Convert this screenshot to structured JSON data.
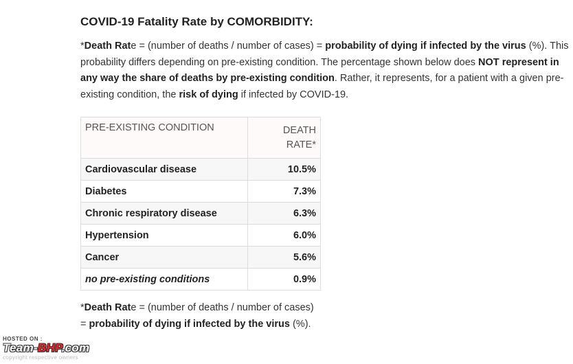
{
  "title": "COVID-19 Fatality Rate by COMORBIDITY:",
  "intro": {
    "asterisk": "*",
    "death_rate_label": "Death Rat",
    "death_rate_suffix": "e",
    "formula": " = (number of deaths / number of cases) = ",
    "probability": "probability of dying if infected by the virus",
    "percent_note": " (%). This probability differs depending on pre-existing condition. The percentage shown below does ",
    "not_word": "NOT",
    "space": " ",
    "represent": "represent in any way the share of deaths by pre-existing condition",
    "rather": ". Rather, it represents, for a patient with a given pre-existing condition, the ",
    "risk": "risk of dying",
    "tail": " if infected by COVID-19."
  },
  "table": {
    "header": {
      "condition": "PRE-EXISTING CONDITION",
      "rate_line1": "DEATH",
      "rate_line2": "RATE*"
    },
    "rows": [
      {
        "condition": "Cardiovascular disease",
        "rate": "10.5%"
      },
      {
        "condition": "Diabetes",
        "rate": "7.3%"
      },
      {
        "condition": "Chronic respiratory disease",
        "rate": "6.3%"
      },
      {
        "condition": "Hypertension",
        "rate": "6.0%"
      },
      {
        "condition": "Cancer",
        "rate": "5.6%"
      },
      {
        "condition": "no pre-existing conditions",
        "rate": "0.9%"
      }
    ]
  },
  "note": {
    "asterisk": "*",
    "death_rate_label": "Death Rat",
    "death_rate_suffix": "e",
    "formula": " = (number of deaths / number of cases) = ",
    "probability": "probability of dying if infected by the virus",
    "tail": " (%)."
  },
  "watermark": {
    "hosted": "HOSTED ON :",
    "logo_a": "Team-",
    "logo_b": "BHP",
    "logo_c": ".com",
    "copyright": "copyright respective owners"
  }
}
